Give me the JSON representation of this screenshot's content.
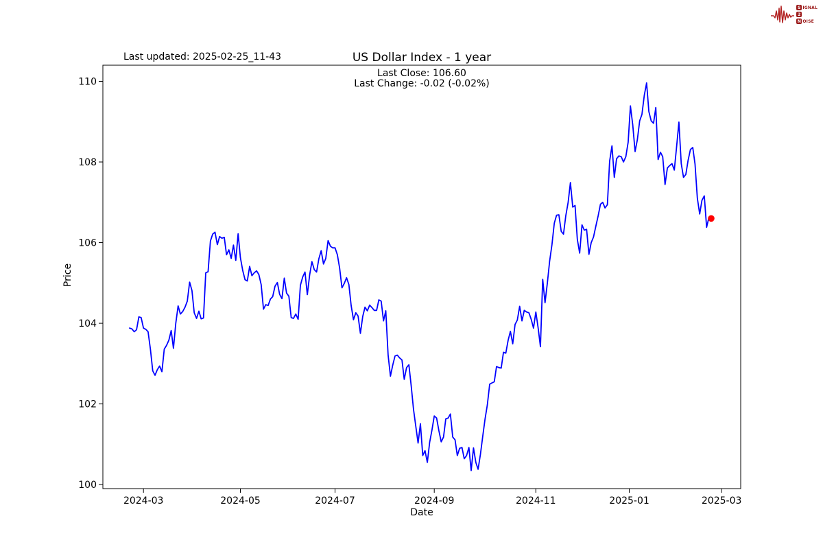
{
  "header": {
    "last_updated": "Last updated: 2025-02-25_11-43"
  },
  "logo": {
    "word1_initial": "S",
    "word1_rest": "IGNAL",
    "word2_initial": "2",
    "word3_initial": "N",
    "word3_rest": "OISE",
    "color": "#9b1b1b",
    "wave_color": "#b22222"
  },
  "chart_data": {
    "type": "line",
    "title": "US Dollar Index - 1 year",
    "annotation_lines": [
      "Last Close: 106.60",
      "Last Change: -0.02 (-0.02%)"
    ],
    "xlabel": "Date",
    "ylabel": "Price",
    "grid": false,
    "legend": "none",
    "x_tick_labels": [
      "2024-03",
      "2024-05",
      "2024-07",
      "2024-09",
      "2024-11",
      "2025-01",
      "2025-03"
    ],
    "x_tick_indices": [
      6,
      48,
      89,
      132,
      176,
      216.5,
      256.5
    ],
    "y_ticks": [
      100,
      102,
      104,
      106,
      108,
      110
    ],
    "ylim": [
      99.9,
      110.4
    ],
    "line_color": "#0000ff",
    "series": [
      {
        "name": "US Dollar Index close",
        "color": "#0000ff",
        "values": [
          103.88,
          103.86,
          103.79,
          103.84,
          104.16,
          104.14,
          103.88,
          103.85,
          103.79,
          103.36,
          102.82,
          102.71,
          102.85,
          102.94,
          102.8,
          103.36,
          103.45,
          103.58,
          103.82,
          103.38,
          104.0,
          104.43,
          104.23,
          104.29,
          104.4,
          104.55,
          105.02,
          104.81,
          104.26,
          104.12,
          104.3,
          104.11,
          104.13,
          105.25,
          105.28,
          106.04,
          106.21,
          106.26,
          105.95,
          106.15,
          106.11,
          106.13,
          105.7,
          105.82,
          105.61,
          105.94,
          105.56,
          106.22,
          105.63,
          105.31,
          105.08,
          105.05,
          105.41,
          105.18,
          105.25,
          105.3,
          105.21,
          104.96,
          104.35,
          104.46,
          104.44,
          104.6,
          104.66,
          104.92,
          105.01,
          104.72,
          104.61,
          105.12,
          104.75,
          104.67,
          104.14,
          104.12,
          104.23,
          104.1,
          104.94,
          105.15,
          105.27,
          104.71,
          105.2,
          105.53,
          105.33,
          105.27,
          105.6,
          105.8,
          105.47,
          105.61,
          106.05,
          105.91,
          105.87,
          105.87,
          105.7,
          105.37,
          104.88,
          104.99,
          105.13,
          104.96,
          104.44,
          104.09,
          104.26,
          104.18,
          103.75,
          104.17,
          104.4,
          104.31,
          104.45,
          104.39,
          104.32,
          104.32,
          104.58,
          104.55,
          104.06,
          104.31,
          103.21,
          102.69,
          102.96,
          103.19,
          103.21,
          103.14,
          103.09,
          102.61,
          102.9,
          102.97,
          102.46,
          101.87,
          101.44,
          101.03,
          101.51,
          100.72,
          100.84,
          100.55,
          101.05,
          101.35,
          101.7,
          101.65,
          101.34,
          101.06,
          101.18,
          101.63,
          101.65,
          101.75,
          101.18,
          101.11,
          100.72,
          100.9,
          100.92,
          100.64,
          100.72,
          100.92,
          100.35,
          100.91,
          100.55,
          100.38,
          100.75,
          101.2,
          101.62,
          101.98,
          102.49,
          102.52,
          102.55,
          102.93,
          102.9,
          102.89,
          103.28,
          103.26,
          103.58,
          103.8,
          103.49,
          103.97,
          104.08,
          104.42,
          104.06,
          104.32,
          104.28,
          104.26,
          104.1,
          103.88,
          104.28,
          103.89,
          103.42,
          105.09,
          104.51,
          105.0,
          105.54,
          105.95,
          106.48,
          106.68,
          106.69,
          106.28,
          106.21,
          106.67,
          107.0,
          107.49,
          106.88,
          106.92,
          106.08,
          105.74,
          106.44,
          106.31,
          106.33,
          105.71,
          106.0,
          106.14,
          106.4,
          106.66,
          106.95,
          107.0,
          106.86,
          106.94,
          108.02,
          108.4,
          107.62,
          108.08,
          108.15,
          108.13,
          108.0,
          108.13,
          108.49,
          109.39,
          108.92,
          108.26,
          108.55,
          109.02,
          109.18,
          109.65,
          109.96,
          109.25,
          109.02,
          108.96,
          109.35,
          108.06,
          108.24,
          108.13,
          107.44,
          107.85,
          107.91,
          107.96,
          107.8,
          108.37,
          108.99,
          107.96,
          107.62,
          107.69,
          108.04,
          108.31,
          108.36,
          107.95,
          107.1,
          106.71,
          107.05,
          107.16,
          106.38,
          106.62,
          106.6
        ]
      }
    ],
    "last_point": {
      "value": 106.6,
      "color": "#ff0000"
    }
  }
}
